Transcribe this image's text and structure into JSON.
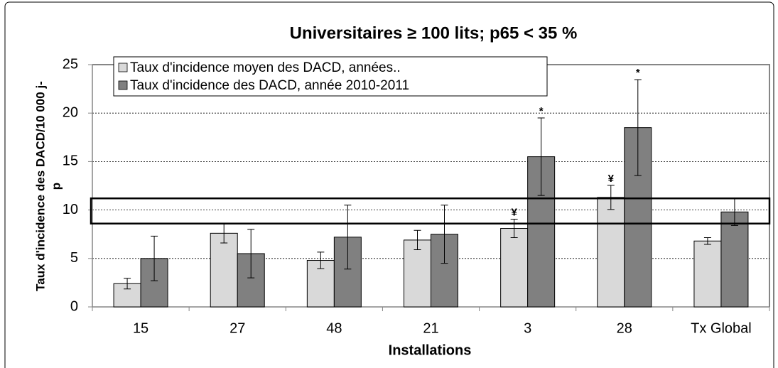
{
  "chart_data": {
    "type": "bar",
    "title": "Universitaires ≥ 100 lits; p65 < 35 %",
    "xlabel": "Installations",
    "ylabel": [
      "Taux d'incidence des DACD/10 000 j-",
      "p"
    ],
    "categories": [
      "15",
      "27",
      "48",
      "21",
      "3",
      "28",
      "Tx Global"
    ],
    "series": [
      {
        "name": "Taux d'incidence moyen des DACD, années..",
        "color": "#d9d9d9",
        "values": [
          2.4,
          7.6,
          4.8,
          6.9,
          8.1,
          11.3,
          6.8
        ],
        "errors": [
          0.55,
          1.0,
          0.85,
          1.0,
          0.95,
          1.25,
          0.35
        ],
        "markers": [
          null,
          null,
          null,
          null,
          "¥",
          "¥",
          null
        ]
      },
      {
        "name": "Taux d'incidence des DACD, année 2010-2011",
        "color": "#808080",
        "values": [
          5.0,
          5.5,
          7.2,
          7.5,
          15.5,
          18.5,
          9.8
        ],
        "errors": [
          2.3,
          2.5,
          3.3,
          3.0,
          4.0,
          4.95,
          1.4
        ],
        "markers": [
          null,
          null,
          null,
          null,
          "*",
          "*",
          null
        ]
      }
    ],
    "highlight_band": [
      8.6,
      11.2
    ],
    "ylim": [
      0,
      25
    ],
    "yticks": [
      0,
      5,
      10,
      15,
      20,
      25
    ],
    "grid": true
  }
}
